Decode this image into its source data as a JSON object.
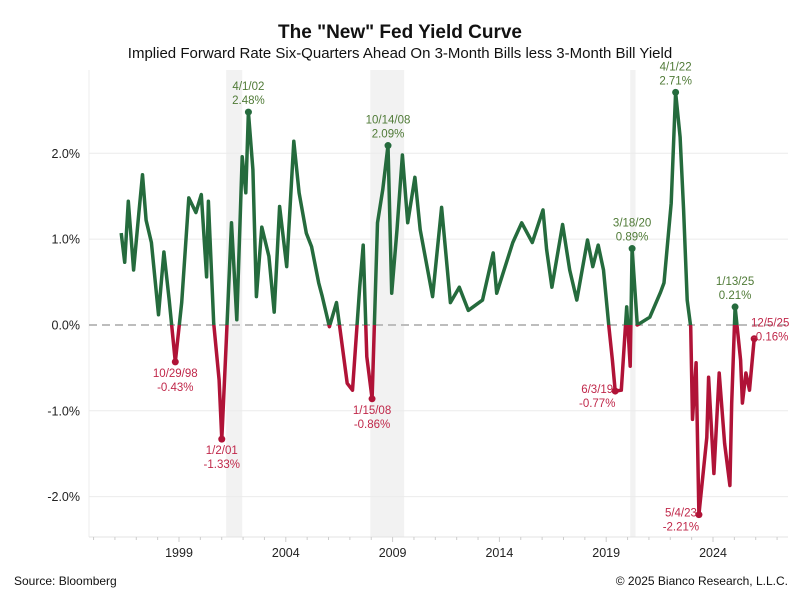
{
  "chart_data": {
    "type": "line",
    "title": "The \"New\" Fed Yield Curve",
    "subtitle": "Implied Forward Rate Six-Quarters Ahead On 3-Month Bills less 3-Month Bill Yield",
    "xlabel": "",
    "ylabel": "",
    "x_ticks": [
      "1999",
      "2004",
      "2009",
      "2014",
      "2019",
      "2024"
    ],
    "y_ticks": [
      {
        "value": 2.0,
        "label": "2.0%"
      },
      {
        "value": 1.0,
        "label": "1.0%"
      },
      {
        "value": 0.0,
        "label": "0.0%"
      },
      {
        "value": -1.0,
        "label": "-1.0%"
      },
      {
        "value": -2.0,
        "label": "-2.0%"
      }
    ],
    "ylim": [
      -2.47,
      2.97
    ],
    "xlim": [
      "1994-10",
      "2027-12"
    ],
    "grid": "horizontal",
    "zero_line": "dashed",
    "colors": {
      "positive": "#256b3d",
      "negative": "#b01337",
      "positive_label": "#4f7a36",
      "negative_label": "#c0284a",
      "recession": "#f2f2f2"
    },
    "recessions": [
      {
        "start": "2001-03",
        "end": "2001-11"
      },
      {
        "start": "2007-12",
        "end": "2009-06"
      },
      {
        "start": "2020-02",
        "end": "2020-04"
      }
    ],
    "series": [
      {
        "points": [
          [
            "1996-04",
            1.07
          ],
          [
            "1996-06",
            0.73
          ],
          [
            "1996-08",
            1.44
          ],
          [
            "1996-11",
            0.64
          ],
          [
            "1997-02",
            1.31
          ],
          [
            "1997-04",
            1.75
          ],
          [
            "1997-06",
            1.22
          ],
          [
            "1997-09",
            0.96
          ],
          [
            "1998-01",
            0.12
          ],
          [
            "1998-04",
            0.85
          ],
          [
            "1998-07",
            0.29
          ],
          [
            "1998-10-29",
            -0.43
          ],
          [
            "1999-02",
            0.26
          ],
          [
            "1999-06",
            1.48
          ],
          [
            "1999-10",
            1.31
          ],
          [
            "2000-01",
            1.52
          ],
          [
            "2000-04",
            0.56
          ],
          [
            "2000-05",
            1.44
          ],
          [
            "2000-08",
            0.02
          ],
          [
            "2000-11",
            -0.64
          ],
          [
            "2001-01-02",
            -1.33
          ],
          [
            "2001-03",
            -0.21
          ],
          [
            "2001-06",
            1.19
          ],
          [
            "2001-09",
            0.06
          ],
          [
            "2001-12",
            1.96
          ],
          [
            "2002-02",
            1.54
          ],
          [
            "2002-04-01",
            2.48
          ],
          [
            "2002-06",
            1.81
          ],
          [
            "2002-08",
            0.33
          ],
          [
            "2002-11",
            1.14
          ],
          [
            "2003-03",
            0.8
          ],
          [
            "2003-06",
            0.15
          ],
          [
            "2003-09",
            1.38
          ],
          [
            "2004-01",
            0.68
          ],
          [
            "2004-05",
            2.14
          ],
          [
            "2004-08",
            1.54
          ],
          [
            "2004-12",
            1.07
          ],
          [
            "2005-03",
            0.91
          ],
          [
            "2005-07",
            0.49
          ],
          [
            "2005-09",
            0.33
          ],
          [
            "2006-01",
            -0.02
          ],
          [
            "2006-05",
            0.26
          ],
          [
            "2006-11",
            -0.68
          ],
          [
            "2007-02",
            -0.76
          ],
          [
            "2007-06",
            0.44
          ],
          [
            "2007-08",
            0.93
          ],
          [
            "2007-10",
            -0.37
          ],
          [
            "2008-01-15",
            -0.86
          ],
          [
            "2008-04",
            1.19
          ],
          [
            "2008-07",
            1.58
          ],
          [
            "2008-10-14",
            2.09
          ],
          [
            "2008-12",
            0.37
          ],
          [
            "2009-03",
            1.11
          ],
          [
            "2009-06",
            1.98
          ],
          [
            "2009-09",
            1.19
          ],
          [
            "2010-01",
            1.72
          ],
          [
            "2010-04",
            1.11
          ],
          [
            "2010-11",
            0.33
          ],
          [
            "2011-04",
            1.37
          ],
          [
            "2011-09",
            0.26
          ],
          [
            "2012-02",
            0.44
          ],
          [
            "2012-07",
            0.17
          ],
          [
            "2013-03",
            0.29
          ],
          [
            "2013-09",
            0.84
          ],
          [
            "2013-11",
            0.37
          ],
          [
            "2014-08",
            0.96
          ],
          [
            "2015-01",
            1.19
          ],
          [
            "2015-07",
            0.96
          ],
          [
            "2016-01",
            1.34
          ],
          [
            "2016-03",
            0.88
          ],
          [
            "2016-06",
            0.44
          ],
          [
            "2016-12",
            1.17
          ],
          [
            "2017-04",
            0.64
          ],
          [
            "2017-08",
            0.29
          ],
          [
            "2018-02",
            0.99
          ],
          [
            "2018-05",
            0.68
          ],
          [
            "2018-08",
            0.93
          ],
          [
            "2018-11",
            0.64
          ],
          [
            "2019-02",
            -0.02
          ],
          [
            "2019-04",
            -0.41
          ],
          [
            "2019-06-03",
            -0.77
          ],
          [
            "2019-09",
            -0.76
          ],
          [
            "2019-12",
            0.21
          ],
          [
            "2020-02",
            -0.48
          ],
          [
            "2020-03-18",
            0.89
          ],
          [
            "2020-06",
            0.0
          ],
          [
            "2021-01",
            0.09
          ],
          [
            "2021-07",
            0.38
          ],
          [
            "2021-09",
            0.49
          ],
          [
            "2022-01",
            1.42
          ],
          [
            "2022-04-01",
            2.71
          ],
          [
            "2022-06",
            2.19
          ],
          [
            "2022-08",
            1.34
          ],
          [
            "2022-10",
            0.29
          ],
          [
            "2022-12",
            -0.02
          ],
          [
            "2023-01",
            -1.1
          ],
          [
            "2023-03",
            -0.44
          ],
          [
            "2023-05-04",
            -2.21
          ],
          [
            "2023-09",
            -1.31
          ],
          [
            "2023-10",
            -0.61
          ],
          [
            "2024-01",
            -1.73
          ],
          [
            "2024-04",
            -0.56
          ],
          [
            "2024-07",
            -1.38
          ],
          [
            "2024-10",
            -1.87
          ],
          [
            "2024-11",
            -0.91
          ],
          [
            "2025-01-13",
            0.21
          ],
          [
            "2025-04",
            -0.41
          ],
          [
            "2025-05",
            -0.91
          ],
          [
            "2025-07",
            -0.56
          ],
          [
            "2025-09",
            -0.76
          ],
          [
            "2025-12-05",
            -0.16
          ]
        ]
      }
    ],
    "annotations": [
      {
        "date": "1998-10-29",
        "value": -0.43,
        "label_date": "10/29/98",
        "label_value": "-0.43%",
        "position": "below"
      },
      {
        "date": "2001-01-02",
        "value": -1.33,
        "label_date": "1/2/01",
        "label_value": "-1.33%",
        "position": "below"
      },
      {
        "date": "2002-04-01",
        "value": 2.48,
        "label_date": "4/1/02",
        "label_value": "2.48%",
        "position": "above"
      },
      {
        "date": "2008-01-15",
        "value": -0.86,
        "label_date": "1/15/08",
        "label_value": "-0.86%",
        "position": "below"
      },
      {
        "date": "2008-10-14",
        "value": 2.09,
        "label_date": "10/14/08",
        "label_value": "2.09%",
        "position": "above"
      },
      {
        "date": "2019-06-03",
        "value": -0.77,
        "label_date": "6/3/19",
        "label_value": "-0.77%",
        "position": "left"
      },
      {
        "date": "2020-03-18",
        "value": 0.89,
        "label_date": "3/18/20",
        "label_value": "0.89%",
        "position": "above"
      },
      {
        "date": "2022-04-01",
        "value": 2.71,
        "label_date": "4/1/22",
        "label_value": "2.71%",
        "position": "above"
      },
      {
        "date": "2023-05-04",
        "value": -2.21,
        "label_date": "5/4/23",
        "label_value": "-2.21%",
        "position": "left"
      },
      {
        "date": "2025-01-13",
        "value": 0.21,
        "label_date": "1/13/25",
        "label_value": "0.21%",
        "position": "above"
      },
      {
        "date": "2025-12-05",
        "value": -0.16,
        "label_date": "12/5/25",
        "label_value": "-0.16%",
        "position": "right"
      }
    ]
  },
  "footer": {
    "source": "Source: Bloomberg",
    "copyright": "© 2025 Bianco Research, L.L.C."
  }
}
